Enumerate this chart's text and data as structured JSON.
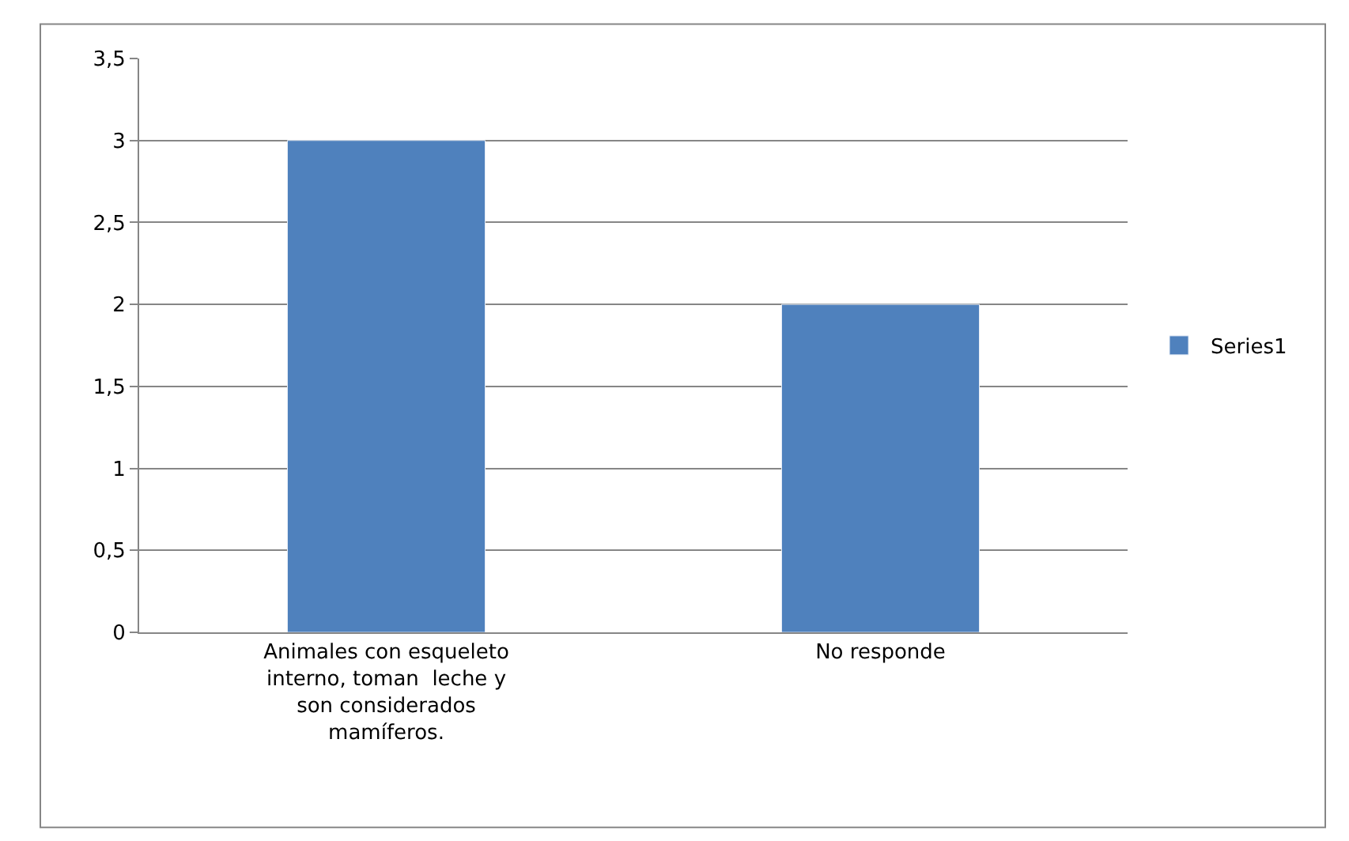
{
  "chart_data": {
    "type": "bar",
    "categories": [
      "Animales con esqueleto interno, toman  leche y son considerados mamíferos.",
      "No responde"
    ],
    "series": [
      {
        "name": "Series1",
        "color": "#4f81bd",
        "values": [
          3,
          2
        ]
      }
    ],
    "ylim": [
      0,
      3.5
    ],
    "yticks": [
      0,
      {
        "value": 0.5,
        "label": "0,5"
      },
      1,
      {
        "value": 1.5,
        "label": "1,5"
      },
      2,
      {
        "value": 2.5,
        "label": "2,5"
      },
      3,
      {
        "value": 3.5,
        "label": "3,5"
      }
    ],
    "grid": "y",
    "legend": "right"
  }
}
